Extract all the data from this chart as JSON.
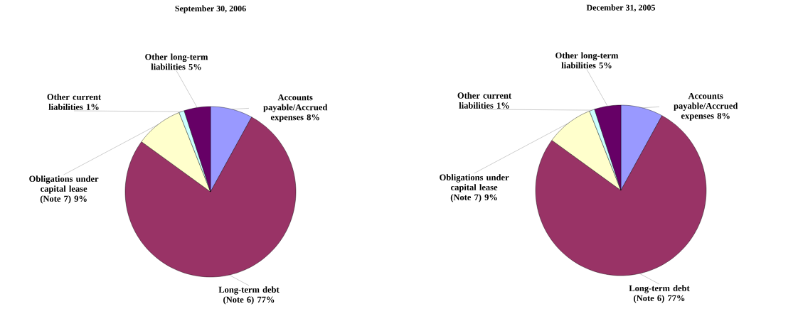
{
  "chart_data": [
    {
      "type": "pie",
      "title": "September 30, 2006",
      "categories": [
        "Accounts payable/Accrued expenses",
        "Long-term debt (Note 6)",
        "Obligations under capital lease (Note 7)",
        "Other current liabilities",
        "Other long-term liabilities"
      ],
      "values": [
        8,
        77,
        9,
        1,
        5
      ],
      "value_labels": [
        "8%",
        "77%",
        "9%",
        "1%",
        "5%"
      ],
      "colors": [
        "#9999ff",
        "#993366",
        "#ffffcc",
        "#ccffff",
        "#660066"
      ]
    },
    {
      "type": "pie",
      "title": "December 31, 2005",
      "categories": [
        "Accounts payable/Accrued expenses",
        "Long-term debt (Note 6)",
        "Obligations under capital lease (Note 7)",
        "Other current liabilities",
        "Other long-term liabilities"
      ],
      "values": [
        8,
        77,
        9,
        1,
        5
      ],
      "value_labels": [
        "8%",
        "77%",
        "9%",
        "1%",
        "5%"
      ],
      "colors": [
        "#9999ff",
        "#993366",
        "#ffffcc",
        "#ccffff",
        "#660066"
      ]
    }
  ]
}
